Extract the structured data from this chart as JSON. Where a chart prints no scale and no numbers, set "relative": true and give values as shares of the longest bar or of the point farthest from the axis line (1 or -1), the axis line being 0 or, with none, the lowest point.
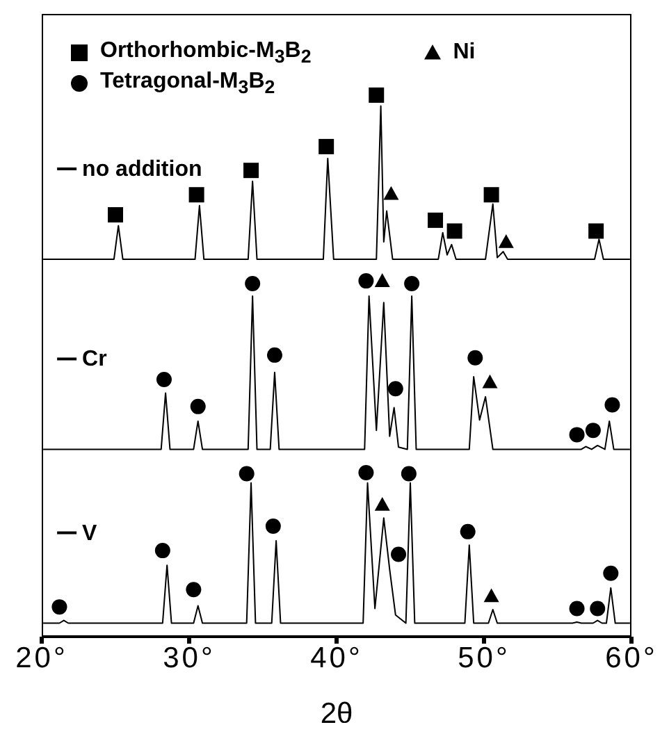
{
  "chart_data": {
    "type": "line",
    "relative": true,
    "xlabel": "2θ",
    "xlim": [
      20,
      60
    ],
    "xticks": [
      {
        "value": 20,
        "label": "20°"
      },
      {
        "value": 30,
        "label": "30°"
      },
      {
        "value": 40,
        "label": "40°"
      },
      {
        "value": 50,
        "label": "50°"
      },
      {
        "value": 60,
        "label": "60°"
      }
    ],
    "tick_labels": "x",
    "grid": false,
    "legend": "top left",
    "series": [
      {
        "name": "no addition",
        "color": "#000000",
        "marker": "none",
        "x": [
          20.1,
          24.9,
          25.2,
          25.5,
          30.4,
          30.7,
          31.0,
          34.0,
          34.3,
          34.6,
          39.1,
          39.4,
          39.8,
          42.7,
          43.0,
          43.2,
          43.4,
          43.8,
          46.9,
          47.2,
          47.5,
          47.8,
          48.1,
          50.1,
          50.6,
          50.9,
          51.3,
          51.6,
          57.5,
          57.8,
          58.1,
          59.9
        ],
        "values": [
          0.697,
          0.697,
          0.759,
          0.697,
          0.697,
          0.796,
          0.697,
          0.697,
          0.841,
          0.697,
          0.697,
          0.883,
          0.697,
          0.697,
          0.98,
          0.729,
          0.786,
          0.697,
          0.697,
          0.746,
          0.705,
          0.724,
          0.697,
          0.697,
          0.799,
          0.7,
          0.711,
          0.697,
          0.697,
          0.734,
          0.697,
          0.697
        ]
      },
      {
        "name": "Cr",
        "color": "#000000",
        "marker": "none",
        "x": [
          20.1,
          28.1,
          28.4,
          28.7,
          30.3,
          30.6,
          30.9,
          34.0,
          34.3,
          34.6,
          35.5,
          35.8,
          36.1,
          41.9,
          42.2,
          42.7,
          43.2,
          43.6,
          43.9,
          44.2,
          44.8,
          45.1,
          45.4,
          49.0,
          49.3,
          49.7,
          50.1,
          50.6,
          56.6,
          56.9,
          57.3,
          57.7,
          58.2,
          58.5,
          58.8,
          59.9
        ],
        "values": [
          0.346,
          0.346,
          0.45,
          0.346,
          0.346,
          0.398,
          0.346,
          0.346,
          0.629,
          0.346,
          0.346,
          0.488,
          0.346,
          0.346,
          0.629,
          0.381,
          0.617,
          0.37,
          0.423,
          0.35,
          0.346,
          0.629,
          0.346,
          0.346,
          0.48,
          0.4,
          0.443,
          0.346,
          0.346,
          0.351,
          0.346,
          0.353,
          0.346,
          0.398,
          0.346,
          0.346
        ]
      },
      {
        "name": "V",
        "color": "#000000",
        "marker": "none",
        "x": [
          20.1,
          21.2,
          21.5,
          21.8,
          28.2,
          28.5,
          28.8,
          30.3,
          30.6,
          30.9,
          33.9,
          34.2,
          34.5,
          35.6,
          35.9,
          36.2,
          41.8,
          42.1,
          42.6,
          43.2,
          43.6,
          44.0,
          44.7,
          45.0,
          45.3,
          48.7,
          49.0,
          49.3,
          50.3,
          50.6,
          50.9,
          56.0,
          56.3,
          56.6,
          57.4,
          57.7,
          58.0,
          58.3,
          58.6,
          58.9,
          59.9
        ],
        "values": [
          0.025,
          0.025,
          0.03,
          0.025,
          0.025,
          0.132,
          0.025,
          0.025,
          0.057,
          0.025,
          0.025,
          0.284,
          0.025,
          0.025,
          0.177,
          0.025,
          0.025,
          0.284,
          0.052,
          0.219,
          0.124,
          0.04,
          0.025,
          0.284,
          0.025,
          0.025,
          0.169,
          0.025,
          0.025,
          0.05,
          0.025,
          0.025,
          0.027,
          0.025,
          0.025,
          0.03,
          0.025,
          0.025,
          0.09,
          0.025,
          0.025
        ]
      },
      {
        "name": "Orthorhombic-M$_{3}$B$_{2}$",
        "type": "scatter",
        "color": "#000000",
        "marker": "square",
        "x": [
          25.0,
          30.5,
          34.2,
          39.3,
          42.7,
          46.7,
          48.0,
          50.5,
          57.6
        ],
        "values": [
          0.779,
          0.816,
          0.861,
          0.905,
          1.0,
          0.769,
          0.749,
          0.816,
          0.749
        ]
      },
      {
        "name": "Tetragonal-M$_{3}$B$_{2}$",
        "type": "scatter",
        "color": "#000000",
        "marker": "circle",
        "x": [
          28.3,
          30.6,
          34.3,
          35.8,
          42.0,
          44.0,
          45.1,
          49.4,
          56.3,
          57.4,
          58.7,
          21.2,
          28.2,
          30.3,
          33.9,
          35.7,
          42.0,
          44.2,
          44.9,
          48.9,
          56.3,
          57.7,
          58.6
        ],
        "values": [
          0.475,
          0.425,
          0.652,
          0.52,
          0.657,
          0.458,
          0.652,
          0.515,
          0.373,
          0.381,
          0.428,
          0.055,
          0.159,
          0.087,
          0.301,
          0.204,
          0.303,
          0.152,
          0.301,
          0.194,
          0.052,
          0.052,
          0.117
        ]
      },
      {
        "name": "Ni",
        "type": "scatter",
        "color": "#000000",
        "marker": "triangle",
        "x": [
          43.7,
          51.5,
          43.1,
          50.4,
          43.1,
          50.5
        ],
        "values": [
          0.818,
          0.729,
          0.657,
          0.47,
          0.244,
          0.075
        ]
      }
    ]
  }
}
